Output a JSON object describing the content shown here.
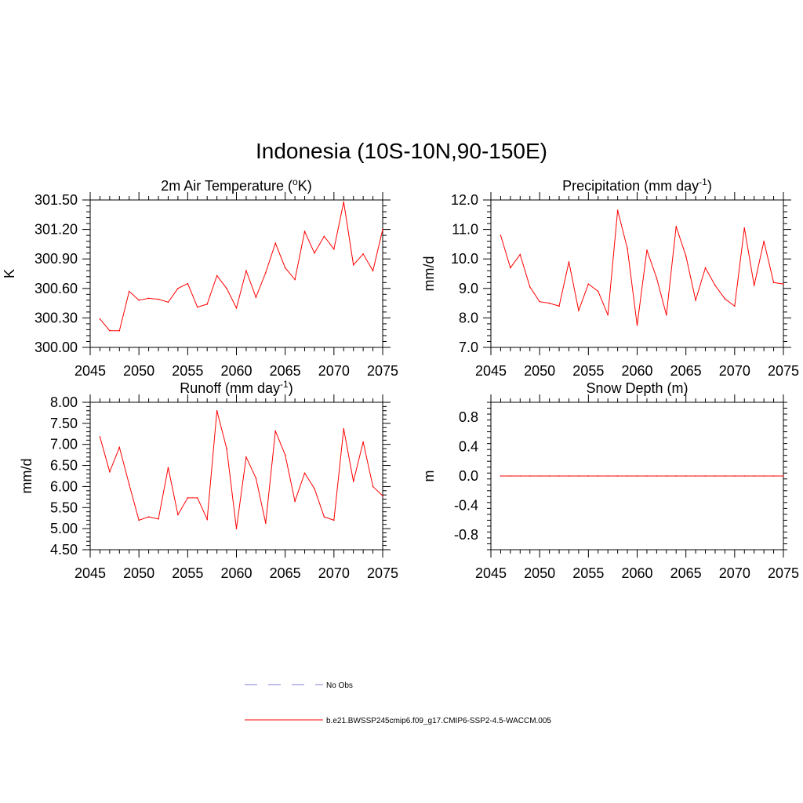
{
  "figure": {
    "title": "Indonesia (10S-10N,90-150E)"
  },
  "colors": {
    "series": "#ff0000",
    "obs": "#9999dd",
    "axis": "#000000"
  },
  "chart_data": [
    {
      "type": "line",
      "title_main": "2m Air Temperature (",
      "title_sup": "o",
      "title_end": "K)",
      "ylabel": "K",
      "xlim": [
        2045,
        2075
      ],
      "ylim": [
        300.0,
        301.5
      ],
      "xticks": [
        2045,
        2050,
        2055,
        2060,
        2065,
        2070,
        2075
      ],
      "yticks": [
        300.0,
        300.3,
        300.6,
        300.9,
        301.2,
        301.5
      ],
      "ytick_labels": [
        "300.00",
        "300.30",
        "300.60",
        "300.90",
        "301.20",
        "301.50"
      ],
      "y_minor_step": 0.06,
      "x": [
        2046,
        2047,
        2048,
        2049,
        2050,
        2051,
        2052,
        2053,
        2054,
        2055,
        2056,
        2057,
        2058,
        2059,
        2060,
        2061,
        2062,
        2063,
        2064,
        2065,
        2066,
        2067,
        2068,
        2069,
        2070,
        2071,
        2072,
        2073,
        2074,
        2075
      ],
      "values": [
        300.29,
        300.17,
        300.17,
        300.57,
        300.48,
        300.5,
        300.49,
        300.46,
        300.6,
        300.65,
        300.41,
        300.44,
        300.73,
        300.6,
        300.4,
        300.78,
        300.51,
        300.76,
        301.06,
        300.81,
        300.69,
        301.18,
        300.96,
        301.13,
        301.0,
        301.48,
        300.84,
        300.95,
        300.78,
        301.2
      ]
    },
    {
      "type": "line",
      "title_main": "Precipitation (mm day",
      "title_sup": "-1",
      "title_end": ")",
      "ylabel": "mm/d",
      "xlim": [
        2045,
        2075
      ],
      "ylim": [
        7.0,
        12.0
      ],
      "xticks": [
        2045,
        2050,
        2055,
        2060,
        2065,
        2070,
        2075
      ],
      "yticks": [
        7.0,
        8.0,
        9.0,
        10.0,
        11.0,
        12.0
      ],
      "ytick_labels": [
        "7.0",
        "8.0",
        "9.0",
        "10.0",
        "11.0",
        "12.0"
      ],
      "y_minor_step": 0.2,
      "x": [
        2046,
        2047,
        2048,
        2049,
        2050,
        2051,
        2052,
        2053,
        2054,
        2055,
        2056,
        2057,
        2058,
        2059,
        2060,
        2061,
        2062,
        2063,
        2064,
        2065,
        2066,
        2067,
        2068,
        2069,
        2070,
        2071,
        2072,
        2073,
        2074,
        2075
      ],
      "values": [
        10.8,
        9.7,
        10.15,
        9.05,
        8.55,
        8.5,
        8.4,
        9.9,
        8.25,
        9.15,
        8.9,
        8.1,
        11.65,
        10.35,
        7.75,
        10.3,
        9.35,
        8.1,
        11.1,
        10.1,
        8.6,
        9.7,
        9.1,
        8.65,
        8.4,
        11.05,
        9.1,
        10.6,
        9.2,
        9.15
      ]
    },
    {
      "type": "line",
      "title_main": "Runoff (mm day",
      "title_sup": "-1",
      "title_end": ")",
      "ylabel": "mm/d",
      "xlim": [
        2045,
        2075
      ],
      "ylim": [
        4.5,
        8.0
      ],
      "xticks": [
        2045,
        2050,
        2055,
        2060,
        2065,
        2070,
        2075
      ],
      "yticks": [
        4.5,
        5.0,
        5.5,
        6.0,
        6.5,
        7.0,
        7.5,
        8.0
      ],
      "ytick_labels": [
        "4.50",
        "5.00",
        "5.50",
        "6.00",
        "6.50",
        "7.00",
        "7.50",
        "8.00"
      ],
      "y_minor_step": 0.1,
      "x": [
        2046,
        2047,
        2048,
        2049,
        2050,
        2051,
        2052,
        2053,
        2054,
        2055,
        2056,
        2057,
        2058,
        2059,
        2060,
        2061,
        2062,
        2063,
        2064,
        2065,
        2066,
        2067,
        2068,
        2069,
        2070,
        2071,
        2072,
        2073,
        2074,
        2075
      ],
      "values": [
        7.18,
        6.35,
        6.93,
        6.05,
        5.2,
        5.28,
        5.23,
        6.45,
        5.33,
        5.73,
        5.73,
        5.22,
        7.8,
        6.9,
        5.0,
        6.7,
        6.2,
        5.13,
        7.32,
        6.75,
        5.65,
        6.32,
        5.95,
        5.28,
        5.2,
        7.37,
        6.12,
        7.06,
        6.0,
        5.78
      ]
    },
    {
      "type": "line",
      "title_main": "Snow Depth (m)",
      "title_sup": "",
      "title_end": "",
      "ylabel": "m",
      "xlim": [
        2045,
        2075
      ],
      "ylim": [
        -1.0,
        1.0
      ],
      "xticks": [
        2045,
        2050,
        2055,
        2060,
        2065,
        2070,
        2075
      ],
      "yticks": [
        -0.8,
        -0.4,
        0.0,
        0.4,
        0.8
      ],
      "ytick_labels": [
        "-0.8",
        "-0.4",
        "0.0",
        "0.4",
        "0.8"
      ],
      "y_minor_step": 0.08,
      "x": [
        2046,
        2047,
        2048,
        2049,
        2050,
        2051,
        2052,
        2053,
        2054,
        2055,
        2056,
        2057,
        2058,
        2059,
        2060,
        2061,
        2062,
        2063,
        2064,
        2065,
        2066,
        2067,
        2068,
        2069,
        2070,
        2071,
        2072,
        2073,
        2074,
        2075
      ],
      "values": [
        0,
        0,
        0,
        0,
        0,
        0,
        0,
        0,
        0,
        0,
        0,
        0,
        0,
        0,
        0,
        0,
        0,
        0,
        0,
        0,
        0,
        0,
        0,
        0,
        0,
        0,
        0,
        0,
        0,
        0
      ]
    }
  ],
  "legend": {
    "obs_label": "No Obs",
    "model_label": "b.e21.BWSSP245cmip6.f09_g17.CMIP6-SSP2-4.5-WACCM.005"
  }
}
